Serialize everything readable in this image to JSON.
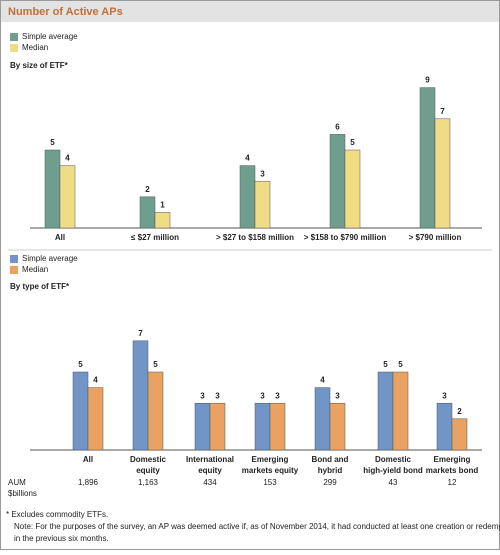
{
  "title": "Number of Active APs",
  "chart_data": [
    {
      "type": "bar",
      "subtitle": "By size of ETF*",
      "categories": [
        [
          "All"
        ],
        [
          "≤ $27 million"
        ],
        [
          "> $27 to $158 million"
        ],
        [
          "> $158 to $790 million"
        ],
        [
          "> $790 million"
        ]
      ],
      "series": [
        {
          "name": "Simple average",
          "color": "#6f9e8f",
          "values": [
            5,
            2,
            4,
            6,
            9
          ]
        },
        {
          "name": "Median",
          "color": "#efdc84",
          "values": [
            4,
            1,
            3,
            5,
            7
          ]
        }
      ]
    },
    {
      "type": "bar",
      "subtitle": "By type of ETF*",
      "categories": [
        [
          "All"
        ],
        [
          "Domestic",
          "equity"
        ],
        [
          "International",
          "equity"
        ],
        [
          "Emerging",
          "markets equity"
        ],
        [
          "Bond and",
          "hybrid"
        ],
        [
          "Domestic",
          "high-yield bond"
        ],
        [
          "Emerging",
          "markets bond"
        ]
      ],
      "series": [
        {
          "name": "Simple average",
          "color": "#7095c6",
          "values": [
            5,
            7,
            3,
            3,
            4,
            5,
            3
          ]
        },
        {
          "name": "Median",
          "color": "#e9a262",
          "values": [
            4,
            5,
            3,
            3,
            3,
            5,
            2
          ]
        }
      ],
      "row_label": [
        "AUM",
        "$billions"
      ],
      "row": [
        "1,896",
        "1,163",
        "434",
        "153",
        "299",
        "43",
        "12"
      ]
    }
  ],
  "footnotes": [
    "* Excludes commodity ETFs.",
    "Note: For the purposes of the survey, an AP was deemed active if, as of November 2014, it had conducted at least one creation or redemption",
    "in the previous six months."
  ]
}
